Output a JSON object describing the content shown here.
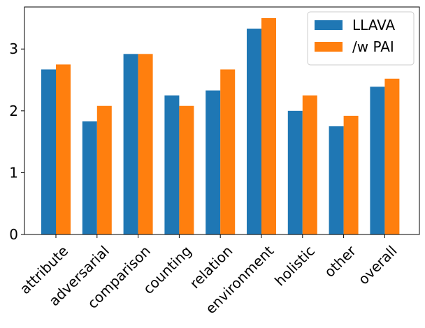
{
  "chart_data": {
    "type": "bar",
    "title": "",
    "xlabel": "",
    "ylabel": "",
    "categories": [
      "attribute",
      "adversarial",
      "comparison",
      "counting",
      "relation",
      "environment",
      "holistic",
      "other",
      "overall"
    ],
    "series": [
      {
        "name": "LLAVA",
        "color": "#1f77b4",
        "values": [
          2.67,
          1.83,
          2.92,
          2.25,
          2.33,
          3.33,
          2.0,
          1.75,
          2.39
        ]
      },
      {
        "name": "/w PAI",
        "color": "#ff7f0e",
        "values": [
          2.75,
          2.08,
          2.92,
          2.08,
          2.67,
          3.5,
          2.25,
          1.92,
          2.52
        ]
      }
    ],
    "ylim": [
      0,
      3.68
    ],
    "yticks": [
      0,
      1,
      2,
      3
    ],
    "grid": false,
    "legend_position": "top-right"
  }
}
